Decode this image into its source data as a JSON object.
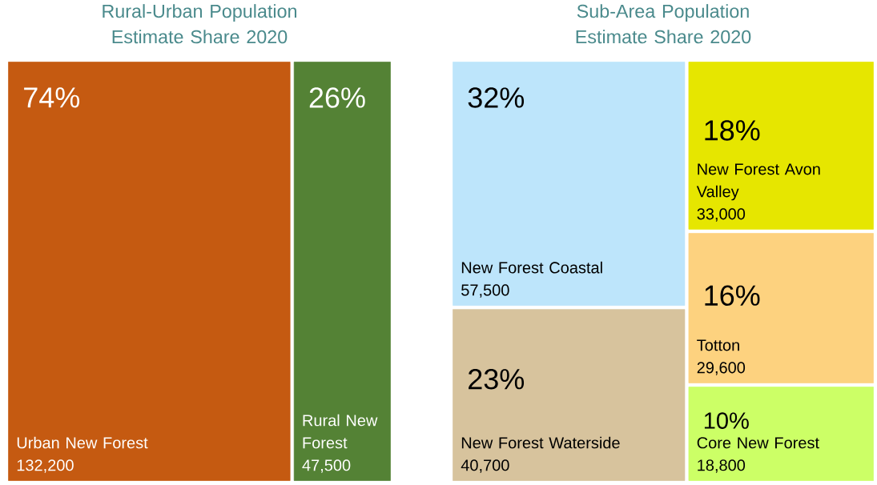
{
  "chart_data": [
    {
      "type": "other",
      "title": "Rural-Urban Population Estimate Share 2020",
      "categories": [
        "Urban New Forest",
        "Rural New Forest"
      ],
      "series": [
        {
          "values": [
            74,
            26
          ],
          "value_labels": [
            "74%",
            "26%"
          ],
          "colors": [
            "#c55a11",
            "#548235"
          ]
        },
        {
          "values": [
            132200,
            47500
          ],
          "value_labels": [
            "132,200",
            "47,500"
          ],
          "colors": [
            "#c55a11",
            "#548235"
          ]
        }
      ]
    },
    {
      "type": "other",
      "title": "Sub-Area Population Estimate Share 2020",
      "categories": [
        "New Forest Coastal",
        "New Forest Waterside",
        "New Forest Avon Valley",
        "Totton",
        "Core New Forest"
      ],
      "series": [
        {
          "values": [
            32,
            23,
            18,
            16,
            10
          ],
          "value_labels": [
            "32%",
            "23%",
            "18%",
            "16%",
            "10%"
          ],
          "colors": [
            "#bde5fb",
            "#d7c39d",
            "#e6e600",
            "#fdd27f",
            "#ccff66"
          ]
        },
        {
          "values": [
            57500,
            40700,
            33000,
            29600,
            18800
          ],
          "value_labels": [
            "57,500",
            "40,700",
            "33,000",
            "29,600",
            "18,800"
          ],
          "colors": [
            "#bde5fb",
            "#d7c39d",
            "#e6e600",
            "#fdd27f",
            "#ccff66"
          ]
        }
      ]
    }
  ]
}
